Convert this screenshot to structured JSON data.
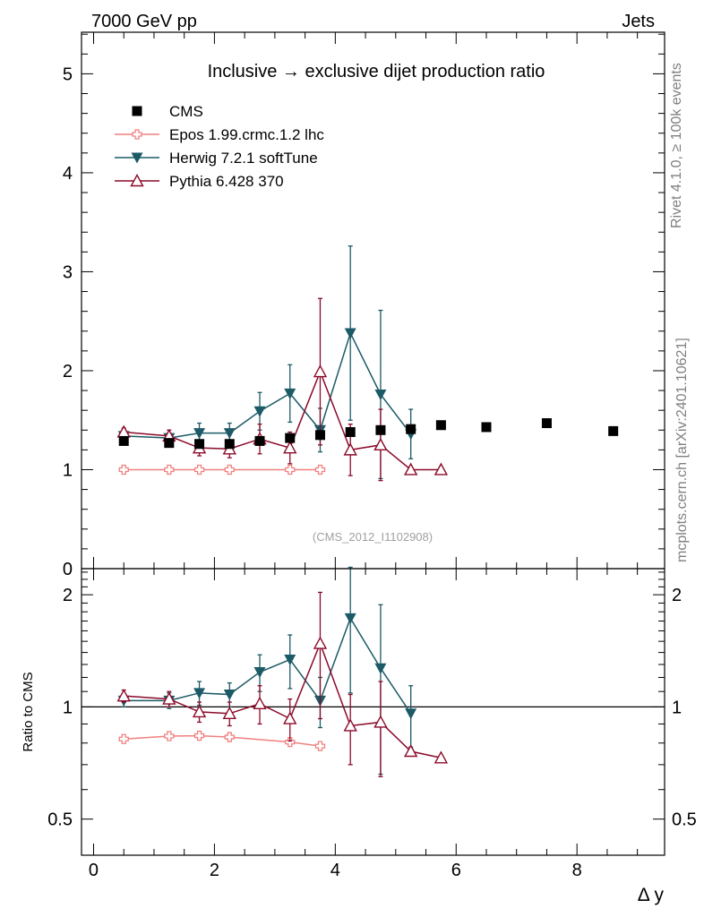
{
  "header": {
    "left": "7000 GeV pp",
    "right": "Jets"
  },
  "side_text": {
    "rivet": "Rivet 4.1.0, ≥ 100k events",
    "mcplots": "mcplots.cern.ch [arXiv:2401.10621]"
  },
  "colors": {
    "cms": "#000000",
    "epos": "#f08080",
    "herwig": "#1b5a66",
    "pythia": "#8b0a2a"
  },
  "chart_data": {
    "type": "scatter",
    "title": "Inclusive → exclusive dijet production ratio",
    "analysis_id": "(CMS_2012_I1102908)",
    "xlabel": "Δ y",
    "ylabel_ratio": "Ratio to CMS",
    "xlim": [
      -0.2,
      9.45
    ],
    "ylim_main": [
      0,
      5.42
    ],
    "ylim_ratio": [
      0.4,
      2.35
    ],
    "x_ticks": [
      0,
      2,
      4,
      6,
      8
    ],
    "x_tick_labels": [
      "0",
      "2",
      "4",
      "6",
      "8"
    ],
    "y_ticks_main": [
      0,
      1,
      2,
      3,
      4,
      5
    ],
    "y_tick_labels_main": [
      "0",
      "1",
      "2",
      "3",
      "4",
      "5"
    ],
    "y_ticks_ratio": [
      0.5,
      1,
      2
    ],
    "y_tick_labels_ratio": [
      "0.5",
      "1",
      "2"
    ],
    "series": [
      {
        "name": "CMS",
        "key": "cms",
        "marker": "square",
        "line": false,
        "x": [
          0.5,
          1.25,
          1.75,
          2.25,
          2.75,
          3.25,
          3.75,
          4.25,
          4.75,
          5.25,
          5.75,
          6.5,
          7.5,
          8.6
        ],
        "y": [
          1.29,
          1.27,
          1.26,
          1.26,
          1.29,
          1.32,
          1.35,
          1.38,
          1.4,
          1.41,
          1.45,
          1.43,
          1.47,
          1.39
        ],
        "err": [
          0,
          0,
          0,
          0,
          0,
          0,
          0,
          0,
          0,
          0,
          0,
          0,
          0,
          0
        ]
      },
      {
        "name": "Epos 1.99.crmc.1.2 lhc",
        "key": "epos",
        "marker": "cross",
        "line": true,
        "x": [
          0.5,
          1.25,
          1.75,
          2.25,
          3.25,
          3.75
        ],
        "y": [
          1.0,
          1.0,
          1.0,
          1.0,
          1.0,
          1.0
        ],
        "err": [
          0.01,
          0.01,
          0.01,
          0.01,
          0.01,
          0.01
        ],
        "ratio": [
          0.82,
          0.835,
          0.837,
          0.83,
          0.805,
          0.785
        ],
        "ratio_err": [
          0.01,
          0.01,
          0.01,
          0.01,
          0.01,
          0.01
        ]
      },
      {
        "name": "Herwig 7.2.1 softTune",
        "key": "herwig",
        "marker": "triangle-down",
        "line": true,
        "x": [
          0.5,
          1.25,
          1.75,
          2.25,
          2.75,
          3.25,
          3.75,
          4.25,
          4.75,
          5.25
        ],
        "y": [
          1.34,
          1.32,
          1.37,
          1.37,
          1.59,
          1.77,
          1.4,
          2.38,
          1.76,
          1.36
        ],
        "err": [
          0.04,
          0.05,
          0.1,
          0.1,
          0.19,
          0.29,
          0.22,
          0.88,
          0.85,
          0.25
        ],
        "ratio": [
          1.04,
          1.04,
          1.09,
          1.08,
          1.24,
          1.34,
          1.04,
          1.73,
          1.27,
          0.96
        ],
        "ratio_err": [
          0.04,
          0.05,
          0.08,
          0.08,
          0.14,
          0.22,
          0.16,
          0.64,
          0.61,
          0.18
        ]
      },
      {
        "name": "Pythia 6.428 370",
        "key": "pythia",
        "marker": "triangle-up-open",
        "line": true,
        "x": [
          0.5,
          1.25,
          1.75,
          2.25,
          2.75,
          3.25,
          3.75,
          4.25,
          4.75,
          5.25,
          5.75
        ],
        "y": [
          1.38,
          1.34,
          1.22,
          1.21,
          1.31,
          1.22,
          1.99,
          1.2,
          1.25,
          1.0,
          1.0
        ],
        "err": [
          0.04,
          0.06,
          0.08,
          0.09,
          0.15,
          0.16,
          0.74,
          0.26,
          0.36,
          0.01,
          0.01
        ],
        "ratio": [
          1.07,
          1.05,
          0.97,
          0.96,
          1.02,
          0.93,
          1.48,
          0.89,
          0.91,
          0.76,
          0.73
        ],
        "ratio_err": [
          0.04,
          0.05,
          0.06,
          0.07,
          0.12,
          0.12,
          0.55,
          0.19,
          0.26,
          0.01,
          0.01
        ]
      }
    ]
  }
}
